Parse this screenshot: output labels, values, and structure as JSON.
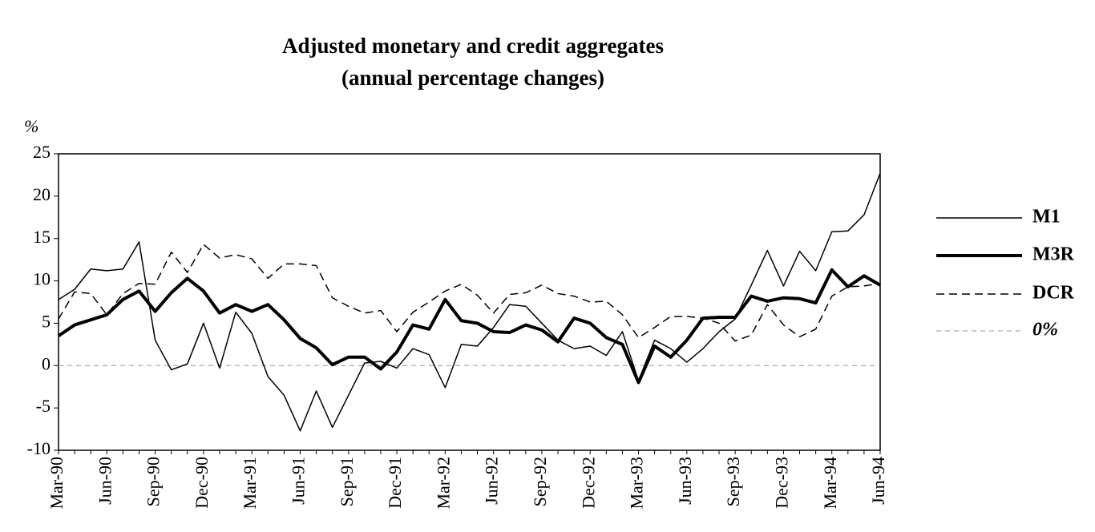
{
  "chart_data": {
    "type": "line",
    "title": "Adjusted monetary and credit aggregates",
    "subtitle": "(annual percentage changes)",
    "y_label": "%",
    "categories": [
      "Mar-90",
      null,
      null,
      "Jun-90",
      null,
      null,
      "Sep-90",
      null,
      null,
      "Dec-90",
      null,
      null,
      "Mar-91",
      null,
      null,
      "Jun-91",
      null,
      null,
      "Sep-91",
      null,
      null,
      "Dec-91",
      null,
      null,
      "Mar-92",
      null,
      null,
      "Jun-92",
      null,
      null,
      "Sep-92",
      null,
      null,
      "Dec-92",
      null,
      null,
      "Mar-93",
      null,
      null,
      "Jun-93",
      null,
      null,
      "Sep-93",
      null,
      null,
      "Dec-93",
      null,
      null,
      "Mar-94",
      null,
      null,
      "Jun-94"
    ],
    "series": [
      {
        "name": "M1",
        "color": "#000000",
        "width": 1.5,
        "style": "solid",
        "values": [
          7.8,
          9,
          11.4,
          11.2,
          11.4,
          14.6,
          3,
          -0.5,
          0.2,
          5,
          -0.3,
          6.3,
          3.8,
          -1.3,
          -3.5,
          -7.7,
          -3,
          -7.3,
          -3.5,
          0.3,
          0.5,
          -0.3,
          2,
          1.3,
          -2.6,
          2.5,
          2.3,
          4.5,
          7.2,
          7,
          5,
          3,
          2,
          2.3,
          1.2,
          4,
          -1.8,
          3,
          2,
          0.4,
          2,
          4,
          5.5,
          9.5,
          13.6,
          9.4,
          13.5,
          11.2,
          15.8,
          15.9,
          17.8,
          22.7
        ]
      },
      {
        "name": "M3R",
        "color": "#000000",
        "width": 4,
        "style": "solid",
        "values": [
          3.5,
          4.8,
          5.4,
          6,
          7.8,
          8.8,
          6.4,
          8.6,
          10.3,
          8.8,
          6.2,
          7.2,
          6.4,
          7.2,
          5.4,
          3.2,
          2.1,
          0.1,
          1,
          1,
          -0.4,
          1.6,
          4.8,
          4.3,
          7.8,
          5.3,
          5,
          4,
          3.9,
          4.8,
          4.2,
          2.8,
          5.6,
          5,
          3.3,
          2.5,
          -2,
          2.3,
          1,
          3,
          5.6,
          5.7,
          5.7,
          8.2,
          7.6,
          8,
          7.9,
          7.4,
          11.3,
          9.3,
          10.6,
          9.5
        ]
      },
      {
        "name": "DCR",
        "color": "#000000",
        "width": 1.5,
        "style": "dashed",
        "values": [
          5.5,
          8.7,
          8.5,
          6,
          8.5,
          9.7,
          9.6,
          13.4,
          11,
          14.3,
          12.7,
          13.1,
          12.6,
          10.3,
          12,
          12,
          11.8,
          8,
          7,
          6.2,
          6.5,
          4,
          6.3,
          7.5,
          8.8,
          9.6,
          8.3,
          6.2,
          8.4,
          8.6,
          9.5,
          8.5,
          8.2,
          7.5,
          7.6,
          6,
          3.3,
          4.5,
          5.8,
          5.8,
          5.6,
          5,
          2.9,
          3.6,
          7.2,
          4.8,
          3.4,
          4.3,
          8.2,
          9.3,
          9.4,
          9.7
        ]
      }
    ],
    "reference_lines": [
      {
        "name": "0%",
        "value": 0,
        "color": "#999999",
        "style": "dashed"
      }
    ],
    "ylim": [
      -10,
      25
    ],
    "yticks": [
      -10,
      -5,
      0,
      5,
      10,
      15,
      20,
      25
    ],
    "grid": false,
    "legend": "right"
  }
}
